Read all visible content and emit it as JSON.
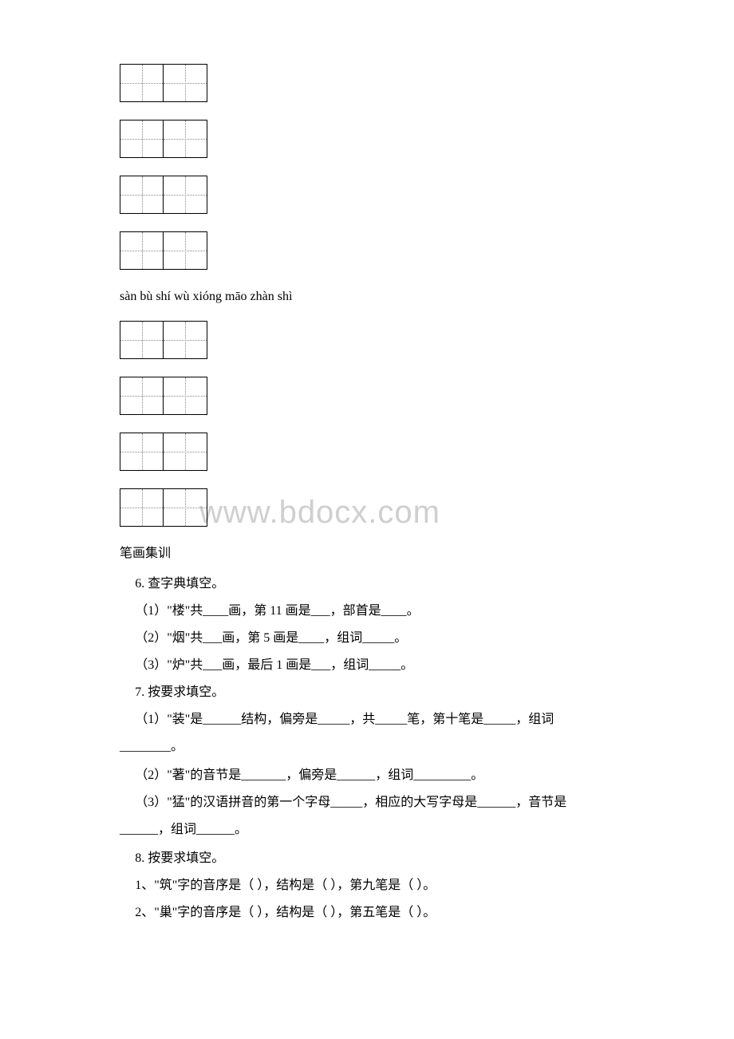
{
  "watermark": "www.bdocx.com",
  "pinyin_line": "sàn bù shí wù xióng māo zhàn shì",
  "section_heading": "笔画集训",
  "q6": {
    "title": "6. 查字典填空。",
    "item1": "（1）\"楼\"共____画，第 11 画是___，部首是____。",
    "item2": "（2）\"烟\"共___画，第 5 画是____，组词_____。",
    "item3": "（3）\"炉\"共___画，最后 1 画是___，组词_____。"
  },
  "q7": {
    "title": "7. 按要求填空。",
    "item1a": "（1）\"装\"是______结构，偏旁是_____，共_____笔，第十笔是_____，组词",
    "item1b": "________。",
    "item2": "（2）\"著\"的音节是_______，偏旁是______，组词_________。",
    "item3a": "（3）\"猛\"的汉语拼音的第一个字母_____，相应的大写字母是______，音节是",
    "item3b": "______，组词______。"
  },
  "q8": {
    "title": "8. 按要求填空。",
    "item1": "1、\"筑\"字的音序是（ ），结构是（ ），第九笔是（ ）。",
    "item2": "2、\"巢\"字的音序是（ ），结构是（ ），第五笔是（ ）。"
  }
}
